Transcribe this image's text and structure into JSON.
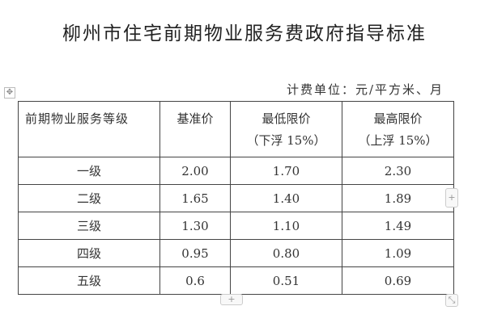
{
  "title": "柳州市住宅前期物业服务费政府指导标准",
  "unit": "计费单位：元/平方米、月",
  "table": {
    "headers": [
      {
        "line1": "前期物业服务等级",
        "line2": ""
      },
      {
        "line1": "基准价",
        "line2": ""
      },
      {
        "line1": "最低限价",
        "line2": "（下浮 15%）"
      },
      {
        "line1": "最高限价",
        "line2": "（上浮 15%）"
      }
    ],
    "rows": [
      [
        "一级",
        "2.00",
        "1.70",
        "2.30"
      ],
      [
        "二级",
        "1.65",
        "1.40",
        "1.89"
      ],
      [
        "三级",
        "1.30",
        "1.10",
        "1.49"
      ],
      [
        "四级",
        "0.95",
        "0.80",
        "1.09"
      ],
      [
        "五级",
        "0.6",
        "0.51",
        "0.69"
      ]
    ]
  },
  "controls": {
    "add_row": "+",
    "add_col": "+",
    "move": "✥",
    "resize": "⤡"
  }
}
